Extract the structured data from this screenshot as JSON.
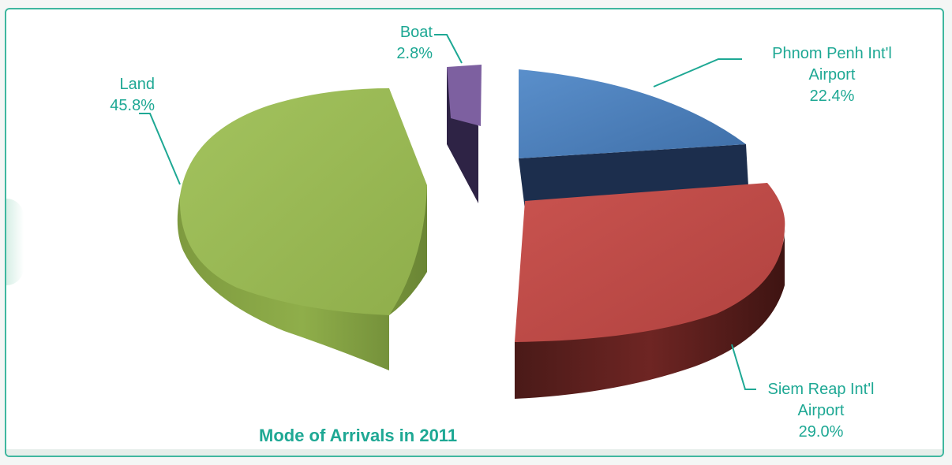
{
  "chart_data": {
    "type": "pie",
    "style": "3d-exploded",
    "title": "Mode of Arrivals in 2011",
    "slices": [
      {
        "label_lines": [
          "Phnom Penh Int'l",
          "Airport"
        ],
        "value": 22.4,
        "value_label": "22.4%",
        "color": "#4a7ebb"
      },
      {
        "label_lines": [
          "Siem Reap Int'l",
          "Airport"
        ],
        "value": 29.0,
        "value_label": "29.0%",
        "color": "#be4b48"
      },
      {
        "label_lines": [
          "Land"
        ],
        "value": 45.8,
        "value_label": "45.8%",
        "color": "#98b954"
      },
      {
        "label_lines": [
          "Boat"
        ],
        "value": 2.8,
        "value_label": "2.8%",
        "color": "#7d60a0"
      }
    ]
  },
  "colors": {
    "accent": "#1ea894",
    "border": "#3fb79f"
  }
}
